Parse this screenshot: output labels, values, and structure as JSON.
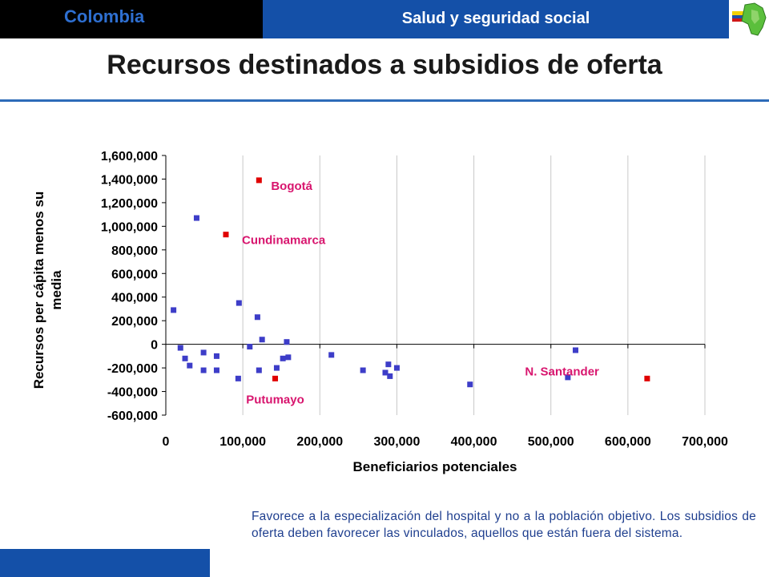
{
  "header": {
    "country": "Colombia",
    "section": "Salud y seguridad social"
  },
  "title": "Recursos destinados a subsidios de oferta",
  "colors": {
    "header_left_bg": "#000000",
    "header_right_bg": "#1450a8",
    "country_text": "#2e6fd1",
    "accent_rule": "#2d6bb8",
    "point_default": "#3d3dc8",
    "point_highlight": "#e00000",
    "annotation_text": "#d8156e",
    "caption_text": "#1f3f8f"
  },
  "chart_data": {
    "type": "scatter",
    "xlabel": "Beneficiarios potenciales",
    "ylabel": "Recursos per cápita menos su media",
    "xlim": [
      0,
      700000
    ],
    "ylim": [
      -600000,
      1600000
    ],
    "xticks": [
      0,
      100000,
      200000,
      300000,
      400000,
      500000,
      600000,
      700000
    ],
    "xtick_labels": [
      "0",
      "100,000",
      "200,000",
      "300,000",
      "400,000",
      "500,000",
      "600,000",
      "700,000"
    ],
    "yticks": [
      1600000,
      1400000,
      1200000,
      1000000,
      800000,
      600000,
      400000,
      200000,
      0,
      -200000,
      -400000,
      -600000
    ],
    "ytick_labels": [
      "1,600,000",
      "1,400,000",
      "1,200,000",
      "1,000,000",
      "800,000",
      "600,000",
      "400,000",
      "200,000",
      "0",
      "-200,000",
      "-400,000",
      "-600,000"
    ],
    "grid": "vertical",
    "series": [
      {
        "points": [
          [
            10000,
            290000
          ],
          [
            19000,
            -30000
          ],
          [
            25000,
            -120000
          ],
          [
            31000,
            -180000
          ],
          [
            40000,
            1070000
          ],
          [
            49000,
            -70000
          ],
          [
            49000,
            -220000
          ],
          [
            66000,
            -100000
          ],
          [
            66000,
            -220000
          ],
          [
            95000,
            350000
          ],
          [
            94000,
            -290000
          ],
          [
            109000,
            -20000
          ],
          [
            119000,
            230000
          ],
          [
            121000,
            -220000
          ],
          [
            125000,
            40000
          ],
          [
            144000,
            -200000
          ],
          [
            152000,
            -120000
          ],
          [
            157000,
            20000
          ],
          [
            159000,
            -110000
          ],
          [
            215000,
            -90000
          ],
          [
            256000,
            -220000
          ],
          [
            285000,
            -240000
          ],
          [
            289000,
            -170000
          ],
          [
            291000,
            -270000
          ],
          [
            300000,
            -200000
          ],
          [
            395000,
            -340000
          ],
          [
            522000,
            -280000
          ],
          [
            532000,
            -50000
          ]
        ]
      },
      {
        "points": [
          [
            121000,
            1390000
          ],
          [
            78000,
            930000
          ],
          [
            142000,
            -290000
          ],
          [
            625000,
            -290000
          ]
        ],
        "labels": [
          "Bogotá",
          "Cundinamarca",
          "Putumayo",
          "N. Santander"
        ]
      }
    ]
  },
  "caption": "Favorece a la especialización del hospital y no a la población objetivo. Los subsidios de oferta deben favorecer las vinculados, aquellos que están fuera del sistema."
}
